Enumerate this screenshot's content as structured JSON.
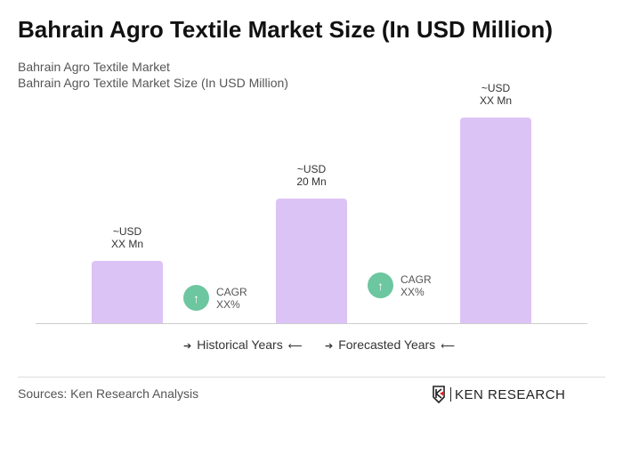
{
  "title": "Bahrain Agro Textile Market Size (In USD Million)",
  "subtitle1": "Bahrain Agro Textile Market",
  "subtitle2": "Bahrain Agro Textile Market Size (In USD Million)",
  "chart_data": {
    "type": "bar",
    "categories": [
      "",
      "",
      ""
    ],
    "values": [
      10,
      20,
      33
    ],
    "data_labels": [
      [
        "~USD",
        "XX Mn"
      ],
      [
        "~USD",
        "20 Mn"
      ],
      [
        "~USD",
        "XX Mn"
      ]
    ],
    "bar_color": "#dcc3f5",
    "cagr": [
      {
        "label": "CAGR",
        "value": "XX%"
      },
      {
        "label": "CAGR",
        "value": "XX%"
      }
    ],
    "cagr_color": "#6cc6a0",
    "grid": false
  },
  "legend": {
    "historical": "Historical Years",
    "forecasted": "Forecasted Years"
  },
  "sources": "Sources: Ken Research Analysis",
  "logo": "KEN RESEARCH"
}
